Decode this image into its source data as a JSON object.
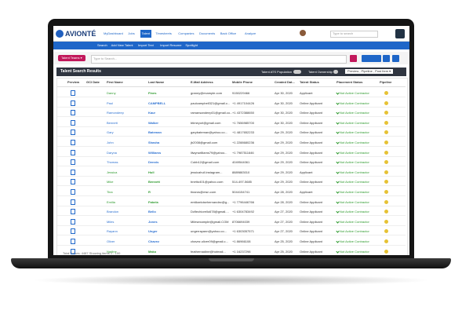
{
  "header": {
    "logo": "AVIONTÉ",
    "nav": [
      "MyDashboard",
      "Jobs",
      "Talent",
      "Timesheets",
      "Companies",
      "Documents",
      "Back Office",
      "Analyze"
    ],
    "search_placeholder": "Type to search"
  },
  "subnav": [
    "Search",
    "Add New Talent",
    "Import Text",
    "Import Resume",
    "Spotlight"
  ],
  "toolbar": {
    "teams_button": "Talent Teams ▾",
    "search_placeholder": "Type to Search..."
  },
  "results": {
    "title": "Talent Search Results",
    "population_label": "Talent ATS Population",
    "ownership_label": "Talent Ownership",
    "view_select": "Preview , Pipeline , Post Item ▾"
  },
  "table": {
    "columns": [
      "Preview",
      "GCI Date",
      "First Name",
      "Last Name",
      "E-Mail Address",
      "Mobile Phone",
      "Created Dat...",
      "Talent Status",
      "Placement Status",
      "Pipeline"
    ],
    "rows": [
      {
        "first": "Danny",
        "last": "Fines",
        "email": "granny@example.com",
        "phone": "9150229466",
        "created": "Apr 30, 2020",
        "status": "Applicant",
        "placement": "Not Active Contractor",
        "color": "#2e9a2e"
      },
      {
        "first": "Paul",
        "last": "CAMPBELL",
        "email": "paulcampbell321@gmail.c...",
        "phone": "+1 4917104426",
        "created": "Apr 30, 2020",
        "status": "Online Applicant",
        "placement": "Not Active Contractor",
        "color": "#2a6fd0"
      },
      {
        "first": "Ramondeep",
        "last": "Kaur",
        "email": "ramansandeep01@gmail.co...",
        "phone": "+1 4372388650",
        "created": "Apr 30, 2020",
        "status": "Online Applicant",
        "placement": "Not Active Contractor",
        "color": "#2a6fd0"
      },
      {
        "first": "Bennett",
        "last": "Walker",
        "email": "btimeyorl@gmail.com",
        "phone": "+1 7656985700",
        "created": "Apr 30, 2020",
        "status": "Online Applicant",
        "placement": "Not Active Contractor",
        "color": "#2a6fd0"
      },
      {
        "first": "Gary",
        "last": "Bateman",
        "email": "garybateman@yahoo.co...",
        "phone": "+1 4817652233",
        "created": "Apr 29, 2020",
        "status": "Online Applicant",
        "placement": "Not Active Contractor",
        "color": "#2a6fd0"
      },
      {
        "first": "John",
        "last": "Shasha",
        "email": "jb2008@gmail.com",
        "phone": "+1 2288680236",
        "created": "Apr 29, 2020",
        "status": "Online Applicant",
        "placement": "Not Active Contractor",
        "color": "#2a6fd0"
      },
      {
        "first": "Daryna",
        "last": "Williams",
        "email": "lilwynwilliams79@yahoo...",
        "phone": "+1 7987511646",
        "created": "Apr 29, 2020",
        "status": "Online Applicant",
        "placement": "Not Active Contractor",
        "color": "#2a6fd0"
      },
      {
        "first": "Thomas",
        "last": "Dennis",
        "email": "Cobb12@gmail.com",
        "phone": "4049544061",
        "created": "Apr 29, 2020",
        "status": "Online Applicant",
        "placement": "Not Active Contractor",
        "color": "#2a6fd0"
      },
      {
        "first": "Jessica",
        "last": "Hull",
        "email": "jessicahull.instagram...",
        "phone": "8889883010",
        "created": "Apr 29, 2020",
        "status": "Applicant",
        "placement": "Not Active Contractor",
        "color": "#2e9a2e"
      },
      {
        "first": "Mike",
        "last": "Bennett",
        "email": "bnetto401@yahoo.com",
        "phone": "514-497-5685",
        "created": "Apr 29, 2020",
        "status": "Online Applicant",
        "placement": "Not Active Contractor",
        "color": "#2e9a2e"
      },
      {
        "first": "Tina",
        "last": "R",
        "email": "tinaros@msn.com",
        "phone": "5044154741",
        "created": "Apr 28, 2020",
        "status": "Applicant",
        "placement": "Not Active Contractor",
        "color": "#2e9a2e"
      },
      {
        "first": "Emilia",
        "last": "Fabela",
        "email": "emiliaeloisehernandez@g...",
        "phone": "+1 7796446766",
        "created": "Apr 28, 2020",
        "status": "Online Applicant",
        "placement": "Not Active Contractor",
        "color": "#2e9a2e"
      },
      {
        "first": "Brandon",
        "last": "Bello",
        "email": "Dcflechiorello678@gmail....",
        "phone": "+1 6304783492",
        "created": "Apr 27, 2020",
        "status": "Online Applicant",
        "placement": "Not Active Contractor",
        "color": "#2a6fd0"
      },
      {
        "first": "Miles",
        "last": "Jones",
        "email": "Milesexample@gmail.COM",
        "phone": "8706694039",
        "created": "Apr 27, 2020",
        "status": "Online Applicant",
        "placement": "Not Active Contractor",
        "color": "#2a6fd0"
      },
      {
        "first": "Rayann",
        "last": "Unger",
        "email": "ungerrayann@yahoo.co...",
        "phone": "+1 6303057571",
        "created": "Apr 27, 2020",
        "status": "Online Applicant",
        "placement": "Not Active Contractor",
        "color": "#2a6fd0"
      },
      {
        "first": "Oliver",
        "last": "Chavez",
        "email": "chavez.oliver09@gmail.c...",
        "phone": "+1 86966108",
        "created": "Apr 25, 2020",
        "status": "Online Applicant",
        "placement": "Not Active Contractor",
        "color": "#2a6fd0"
      },
      {
        "first": "Nadine",
        "last": "Mako",
        "email": "feathernadine@hotmail...",
        "phone": "+1 16237298",
        "created": "Apr 25, 2020",
        "status": "Online Applicant",
        "placement": "Not Active Contractor",
        "color": "#2e9a2e"
      }
    ]
  },
  "footer": "Total Values: 4487 Showing items 1 - 100"
}
